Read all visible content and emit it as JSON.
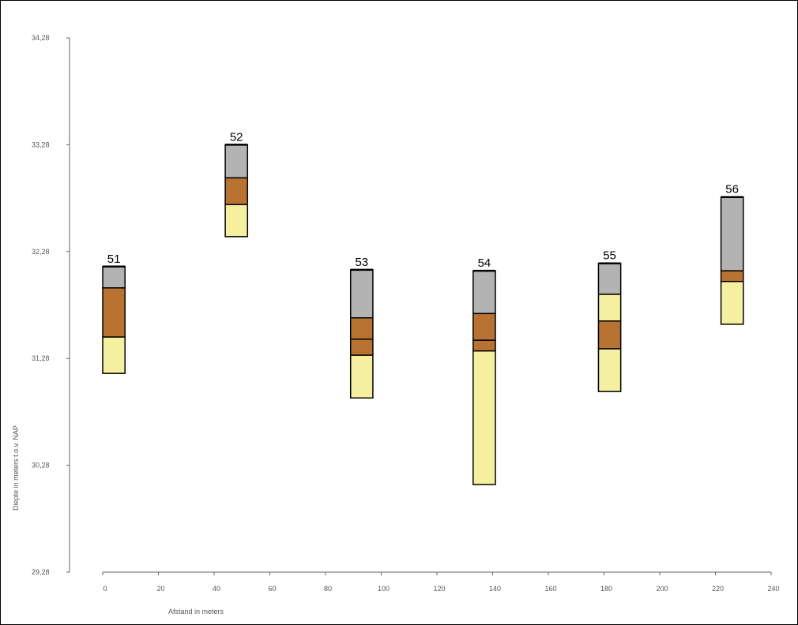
{
  "chart_data": {
    "type": "bar",
    "xlabel": "Afstand in meters",
    "ylabel": "Diepte in meters t.o.v. NAP",
    "xlim": [
      0,
      240
    ],
    "ylim": [
      29.28,
      34.28
    ],
    "x_ticks": [
      "0",
      "20",
      "40",
      "60",
      "80",
      "100",
      "120",
      "140",
      "160",
      "180",
      "200",
      "220",
      "240"
    ],
    "y_ticks": [
      "29,28",
      "30,28",
      "31,28",
      "32,28",
      "33,28",
      "34,28"
    ],
    "colors": {
      "grey": "#b3b3b3",
      "brown": "#b87333",
      "yellow": "#f5f0a0"
    },
    "boreholes": [
      {
        "label": "51",
        "x_start": 0,
        "x_end": 8,
        "layers": [
          {
            "top": 32.14,
            "bottom": 31.94,
            "color": "grey"
          },
          {
            "top": 31.94,
            "bottom": 31.48,
            "color": "brown"
          },
          {
            "top": 31.48,
            "bottom": 31.14,
            "color": "yellow"
          }
        ]
      },
      {
        "label": "52",
        "x_start": 44,
        "x_end": 52,
        "layers": [
          {
            "top": 33.28,
            "bottom": 32.97,
            "color": "grey"
          },
          {
            "top": 32.97,
            "bottom": 32.72,
            "color": "brown"
          },
          {
            "top": 32.72,
            "bottom": 32.42,
            "color": "yellow"
          }
        ]
      },
      {
        "label": "53",
        "x_start": 89,
        "x_end": 97,
        "layers": [
          {
            "top": 32.11,
            "bottom": 31.66,
            "color": "grey"
          },
          {
            "top": 31.66,
            "bottom": 31.46,
            "color": "brown"
          },
          {
            "top": 31.46,
            "bottom": 31.31,
            "color": "brown"
          },
          {
            "top": 31.31,
            "bottom": 30.91,
            "color": "yellow"
          }
        ]
      },
      {
        "label": "54",
        "x_start": 133,
        "x_end": 141,
        "layers": [
          {
            "top": 32.1,
            "bottom": 31.7,
            "color": "grey"
          },
          {
            "top": 31.7,
            "bottom": 31.45,
            "color": "brown"
          },
          {
            "top": 31.45,
            "bottom": 31.35,
            "color": "brown"
          },
          {
            "top": 31.35,
            "bottom": 30.1,
            "color": "yellow"
          }
        ]
      },
      {
        "label": "55",
        "x_start": 178,
        "x_end": 186,
        "layers": [
          {
            "top": 32.17,
            "bottom": 31.88,
            "color": "grey"
          },
          {
            "top": 31.88,
            "bottom": 31.63,
            "color": "yellow"
          },
          {
            "top": 31.63,
            "bottom": 31.37,
            "color": "brown"
          },
          {
            "top": 31.37,
            "bottom": 30.97,
            "color": "yellow"
          }
        ]
      },
      {
        "label": "56",
        "x_start": 222,
        "x_end": 230,
        "layers": [
          {
            "top": 32.79,
            "bottom": 32.1,
            "color": "grey"
          },
          {
            "top": 32.1,
            "bottom": 32.0,
            "color": "brown"
          },
          {
            "top": 32.0,
            "bottom": 31.6,
            "color": "yellow"
          }
        ]
      }
    ]
  }
}
